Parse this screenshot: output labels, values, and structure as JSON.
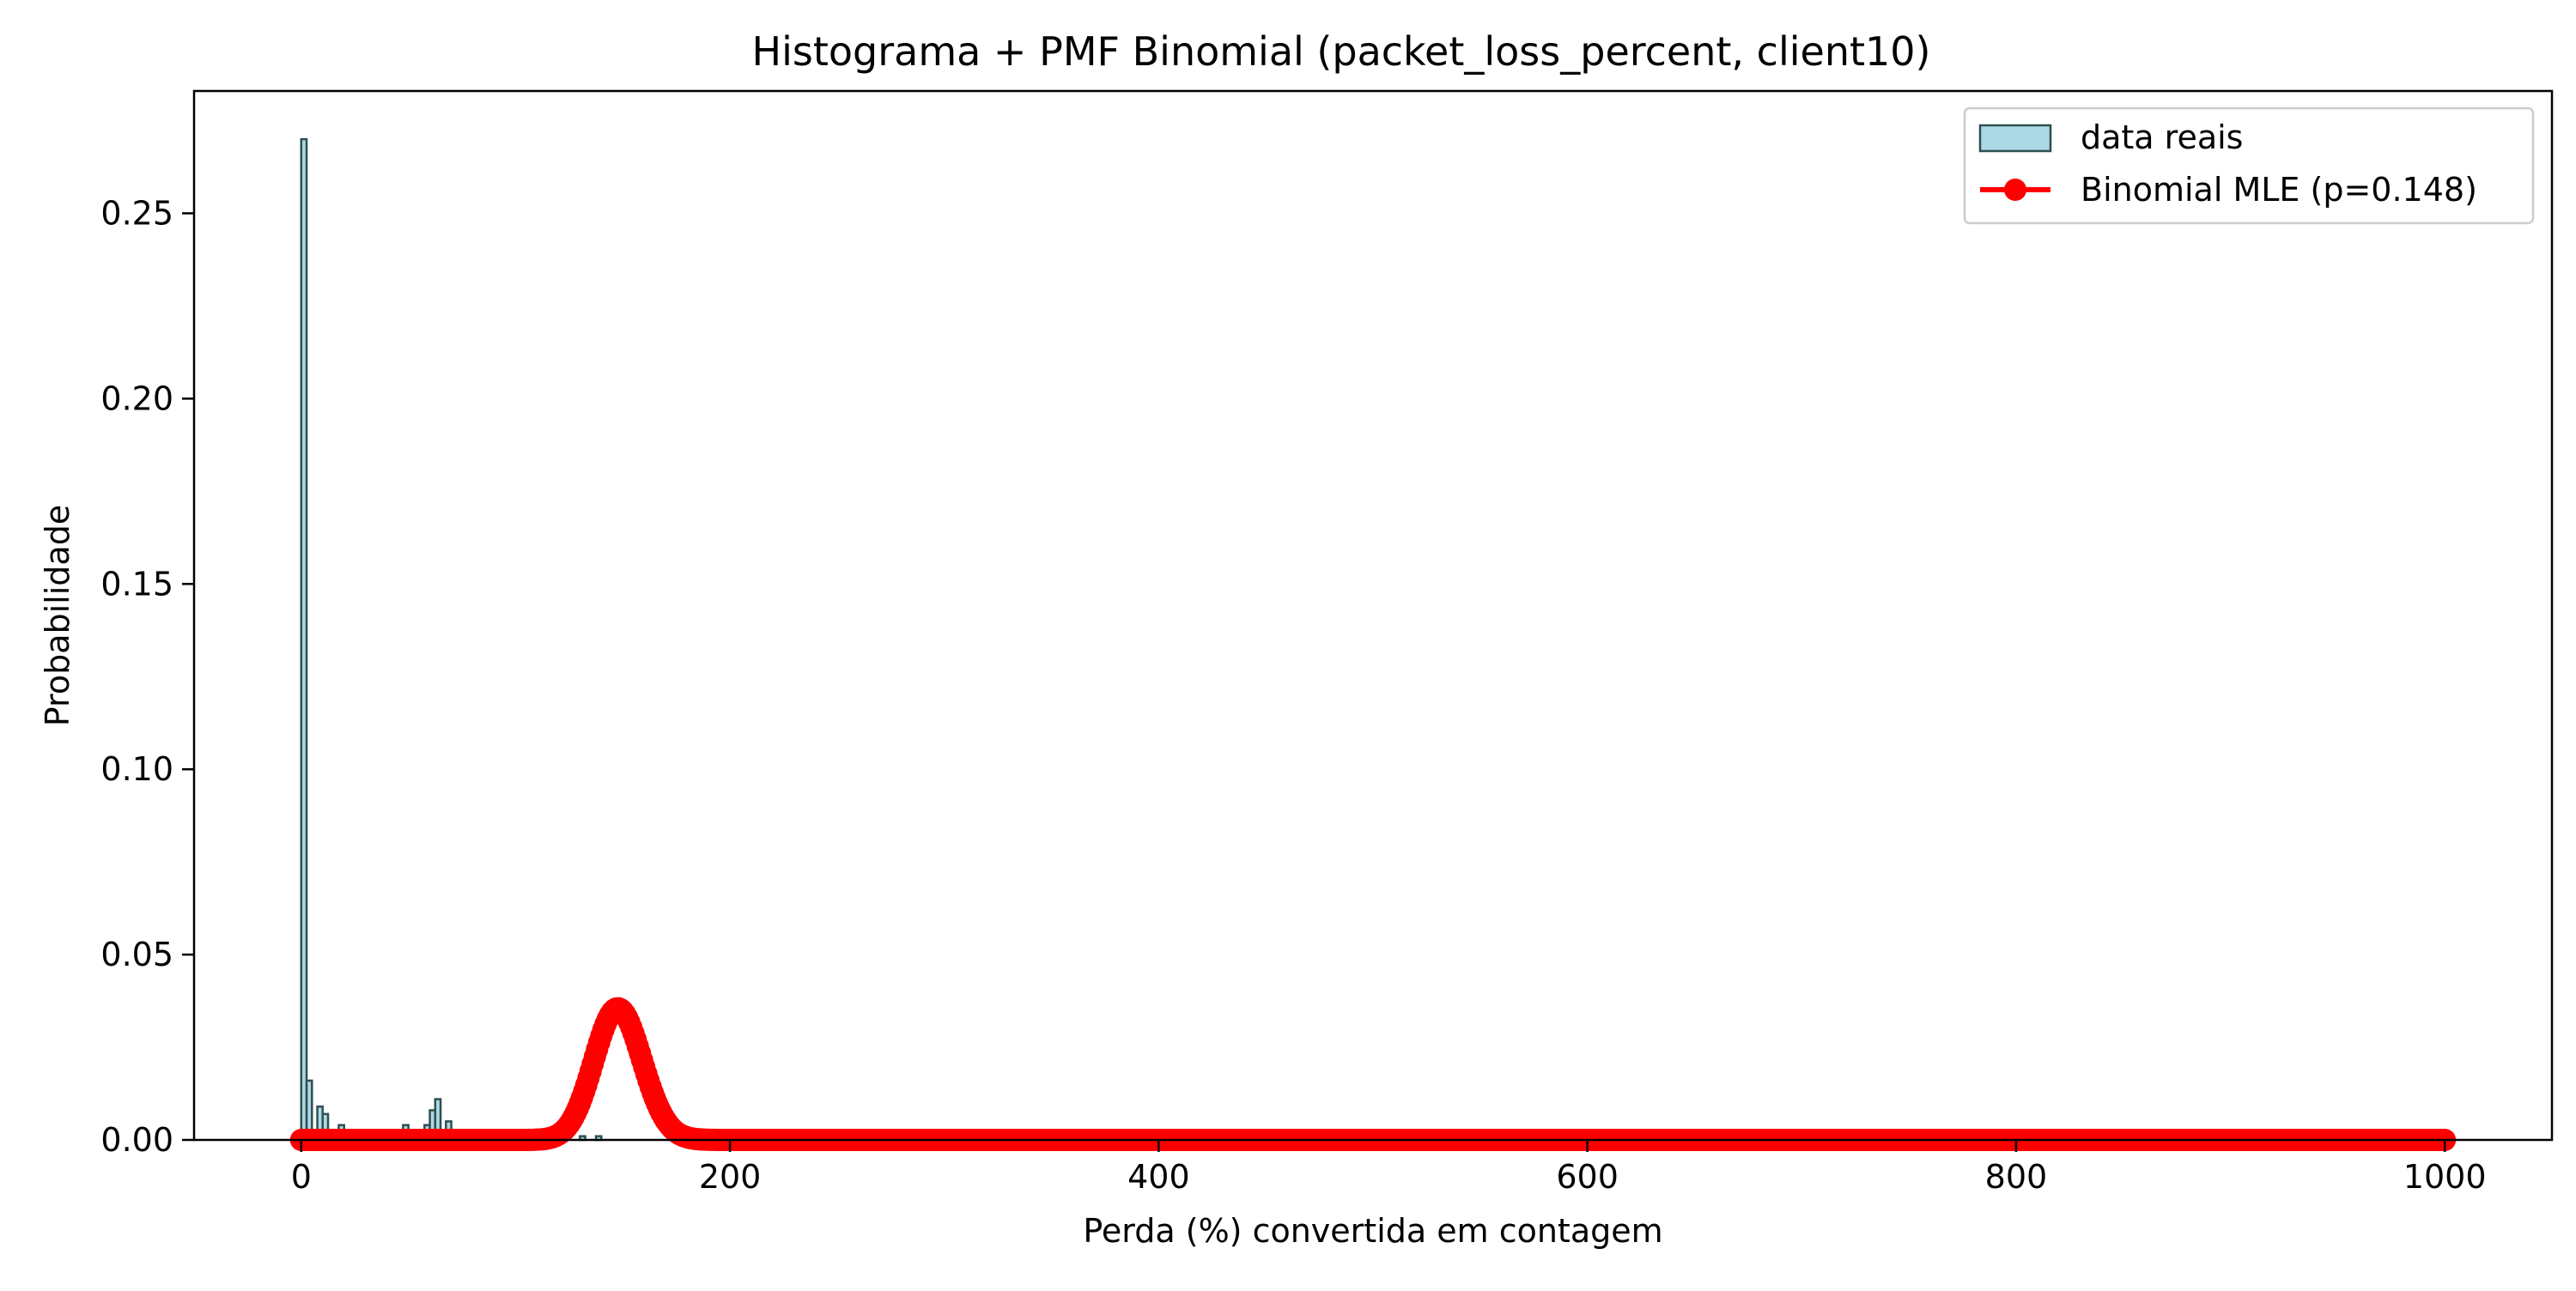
{
  "chart_data": {
    "type": "bar",
    "title": "Histograma + PMF Binomial (packet_loss_percent, client10)",
    "xlabel": "Perda (%) convertida em contagem",
    "ylabel": "Probabilidade",
    "xlim": [
      -50,
      1050
    ],
    "ylim": [
      0,
      0.283
    ],
    "xticks": [
      0,
      200,
      400,
      600,
      800,
      1000
    ],
    "xtick_labels": [
      "0",
      "200",
      "400",
      "600",
      "800",
      "1000"
    ],
    "yticks": [
      0,
      0.05,
      0.1,
      0.15,
      0.2,
      0.25
    ],
    "ytick_labels": [
      "0.00",
      "0.05",
      "0.10",
      "0.15",
      "0.20",
      "0.25"
    ],
    "grid": false,
    "legend_position": "top-right",
    "histogram": {
      "name": "data reais",
      "color": "#add8e6",
      "edge_color": "#2f4f4f",
      "bin_width": 2.5,
      "bins": [
        {
          "x": 0,
          "value": 0.27
        },
        {
          "x": 2.5,
          "value": 0.016
        },
        {
          "x": 5,
          "value": 0.002
        },
        {
          "x": 7.5,
          "value": 0.009
        },
        {
          "x": 10,
          "value": 0.007
        },
        {
          "x": 12.5,
          "value": 0.002
        },
        {
          "x": 17.5,
          "value": 0.004
        },
        {
          "x": 47.5,
          "value": 0.004
        },
        {
          "x": 50,
          "value": 0.002
        },
        {
          "x": 55,
          "value": 0.002
        },
        {
          "x": 57.5,
          "value": 0.004
        },
        {
          "x": 60,
          "value": 0.008
        },
        {
          "x": 62.5,
          "value": 0.011
        },
        {
          "x": 65,
          "value": 0.002
        },
        {
          "x": 67.5,
          "value": 0.005
        },
        {
          "x": 70,
          "value": 0.002
        },
        {
          "x": 130,
          "value": 0.001
        },
        {
          "x": 137.5,
          "value": 0.001
        }
      ]
    },
    "line_series": {
      "name": "Binomial MLE (p=0.148)",
      "color": "#ff0000",
      "n": 1000,
      "p": 0.148,
      "x_range": [
        0,
        1000
      ]
    }
  }
}
